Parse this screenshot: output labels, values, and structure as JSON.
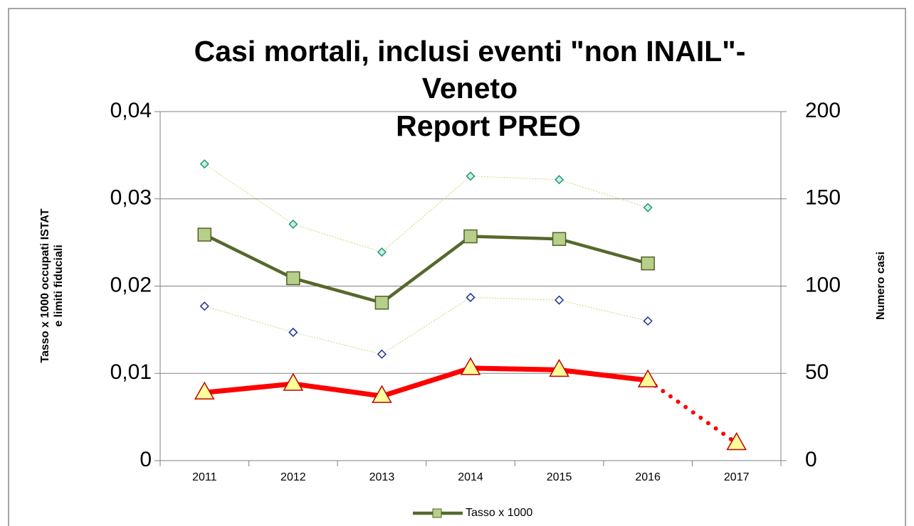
{
  "chart_data": {
    "type": "line",
    "title": [
      "Casi mortali, inclusi eventi \"non INAIL\"-",
      "Veneto",
      "Report PREO"
    ],
    "ylabel": [
      "Tasso x 1000 occupati ISTAT",
      "e limiti fiduciali"
    ],
    "y2label": "Numero casi",
    "categories": [
      "2011",
      "2012",
      "2013",
      "2014",
      "2015",
      "2016",
      "2017"
    ],
    "ylim": [
      0,
      0.04
    ],
    "yticks": [
      0,
      {
        "value": 0.01,
        "label": "0,01"
      },
      {
        "value": 0.02,
        "label": "0,02"
      },
      {
        "value": 0.03,
        "label": "0,03"
      },
      {
        "value": 0.04,
        "label": "0,04"
      }
    ],
    "y2lim": [
      0,
      200
    ],
    "y2ticks": [
      0,
      50,
      100,
      150,
      200
    ],
    "grid": true,
    "legend": "bottom",
    "series": [
      {
        "color": "#c8d870",
        "marker": "diamond",
        "marker_color": "#1a9a7a",
        "marker_fill": "#cdeee0",
        "line_style": "dotted",
        "values": [
          0.034,
          0.0271,
          0.0239,
          0.0326,
          0.0322,
          0.029,
          null
        ]
      },
      {
        "color": "#c8d870",
        "marker": "diamond",
        "marker_color": "#1a2f9a",
        "marker_fill": "#ffffff",
        "line_style": "dotted",
        "values": [
          0.0177,
          0.0147,
          0.0122,
          0.0187,
          0.0184,
          0.016,
          null
        ]
      },
      {
        "name": "Tasso x 1000",
        "color": "#55692b",
        "marker": "square",
        "marker_color": "#4f6228",
        "marker_fill": "#b8cf8a",
        "line_style": "solid",
        "values": [
          0.0259,
          0.0209,
          0.0181,
          0.0257,
          0.0254,
          0.0226,
          null
        ]
      },
      {
        "axis": "y2",
        "color": "#ff0000",
        "marker": "triangle",
        "marker_color": "#c00000",
        "marker_fill": "#ffff99",
        "line_style": "thick",
        "dotted_from": 5,
        "values": [
          39,
          44,
          37,
          53,
          52,
          46,
          10
        ]
      }
    ]
  }
}
